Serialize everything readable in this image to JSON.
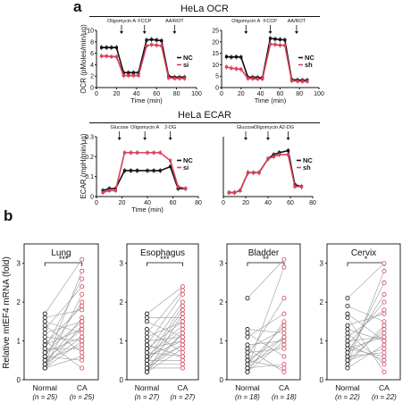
{
  "panel_a_label": "a",
  "panel_b_label": "b",
  "ocr_header": "HeLa OCR",
  "ecar_header": "HeLa ECAR",
  "colors": {
    "nc": "#111111",
    "si": "#d6405a",
    "axis": "#111111"
  },
  "chart_data": [
    {
      "id": "ocr_si",
      "type": "line",
      "ylabel": "OCR (pMoles/min/µg)",
      "xlabel": "Time (min)",
      "xlim": [
        0,
        100
      ],
      "ylim": [
        0,
        10
      ],
      "x_ticks": [
        0,
        20,
        40,
        60,
        80,
        100
      ],
      "y_ticks": [
        0,
        2,
        4,
        6,
        8,
        10
      ],
      "annotations": [
        {
          "label": "Oligomycin A",
          "x": 25
        },
        {
          "label": "FCCP",
          "x": 48
        },
        {
          "label": "AA/ROT",
          "x": 78
        }
      ],
      "legend": [
        "NC",
        "si"
      ],
      "x": [
        5,
        10,
        15,
        20,
        27,
        32,
        37,
        42,
        50,
        55,
        60,
        65,
        72,
        78,
        83,
        88
      ],
      "series": [
        {
          "name": "NC",
          "values": [
            7.0,
            7.0,
            7.0,
            7.0,
            2.6,
            2.6,
            2.6,
            2.6,
            8.3,
            8.4,
            8.3,
            8.2,
            2.0,
            1.8,
            1.8,
            1.8
          ]
        },
        {
          "name": "si",
          "values": [
            5.5,
            5.5,
            5.4,
            5.4,
            2.1,
            2.1,
            2.1,
            2.1,
            7.3,
            7.5,
            7.4,
            7.3,
            1.7,
            1.6,
            1.6,
            1.6
          ]
        }
      ]
    },
    {
      "id": "ocr_sh",
      "type": "line",
      "xlabel": "Time (min)",
      "xlim": [
        0,
        100
      ],
      "ylim": [
        0,
        25
      ],
      "x_ticks": [
        0,
        20,
        40,
        60,
        80,
        100
      ],
      "y_ticks": [
        0,
        5,
        10,
        15,
        20,
        25
      ],
      "annotations": [
        {
          "label": "Oligomycin A",
          "x": 25
        },
        {
          "label": "FCCP",
          "x": 50
        },
        {
          "label": "AA/ROT",
          "x": 77
        }
      ],
      "legend": [
        "NC",
        "sh"
      ],
      "x": [
        5,
        10,
        15,
        20,
        27,
        32,
        37,
        42,
        50,
        55,
        60,
        65,
        72,
        78,
        83,
        88
      ],
      "series": [
        {
          "name": "NC",
          "values": [
            13.5,
            13.3,
            13.4,
            13.3,
            4.5,
            4.5,
            4.4,
            4.3,
            21.5,
            21.2,
            21.0,
            20.8,
            3.5,
            3.3,
            3.2,
            3.2
          ]
        },
        {
          "name": "sh",
          "values": [
            9.0,
            8.5,
            8.2,
            8.0,
            4.0,
            3.9,
            3.8,
            3.8,
            19.0,
            18.8,
            18.5,
            18.5,
            3.0,
            2.8,
            2.7,
            2.7
          ]
        }
      ]
    },
    {
      "id": "ecar_si",
      "type": "line",
      "ylabel": "ECAR (mpH/min/µg)",
      "xlabel": "Time (min)",
      "xlim": [
        0,
        80
      ],
      "ylim": [
        0,
        0.3
      ],
      "x_ticks": [
        0,
        20,
        40,
        60,
        80
      ],
      "y_ticks": [
        0.0,
        0.1,
        0.2,
        0.3
      ],
      "annotations": [
        {
          "label": "Glucose",
          "x": 18
        },
        {
          "label": "Oligomycin A",
          "x": 38
        },
        {
          "label": "2-DG",
          "x": 58
        }
      ],
      "legend": [
        "NC",
        "si"
      ],
      "x": [
        5,
        10,
        15,
        22,
        27,
        32,
        40,
        45,
        50,
        58,
        64,
        70
      ],
      "series": [
        {
          "name": "NC",
          "values": [
            0.03,
            0.04,
            0.04,
            0.13,
            0.13,
            0.13,
            0.13,
            0.13,
            0.13,
            0.15,
            0.04,
            0.04
          ]
        },
        {
          "name": "si",
          "values": [
            0.02,
            0.03,
            0.03,
            0.22,
            0.22,
            0.22,
            0.22,
            0.22,
            0.22,
            0.18,
            0.05,
            0.04
          ]
        }
      ]
    },
    {
      "id": "ecar_sh",
      "type": "line",
      "xlim": [
        0,
        80
      ],
      "ylim": [
        0,
        0.3
      ],
      "x_ticks": [
        0,
        20,
        40,
        60,
        80
      ],
      "annotations": [
        {
          "label": "Glucose",
          "x": 20
        },
        {
          "label": "Oligomycin A",
          "x": 40
        },
        {
          "label": "2-DG",
          "x": 58
        }
      ],
      "legend": [
        "NC",
        "sh"
      ],
      "x": [
        5,
        10,
        15,
        22,
        27,
        32,
        40,
        45,
        50,
        58,
        64,
        70
      ],
      "series": [
        {
          "name": "NC",
          "values": [
            0.02,
            0.02,
            0.03,
            0.12,
            0.12,
            0.12,
            0.19,
            0.21,
            0.22,
            0.23,
            0.06,
            0.05
          ]
        },
        {
          "name": "sh",
          "values": [
            0.02,
            0.02,
            0.03,
            0.12,
            0.12,
            0.12,
            0.19,
            0.2,
            0.21,
            0.21,
            0.05,
            0.05
          ]
        }
      ]
    },
    {
      "id": "paired",
      "type": "scatter",
      "ylabel": "Relative mtEF4 mRNA (fold)",
      "ylim": [
        0,
        3.5
      ],
      "y_ticks_per_panel": [
        [
          0,
          1,
          2,
          3
        ],
        [
          0,
          1,
          2,
          3
        ],
        [
          0,
          1,
          2,
          3
        ],
        [
          0,
          1,
          2,
          3
        ]
      ],
      "panels": [
        {
          "title": "Lung",
          "sig": "***",
          "x_labels": [
            "Normal",
            "CA"
          ],
          "n_labels": [
            "(n = 25)",
            "(n = 25)"
          ],
          "normal": [
            1.7,
            1.6,
            1.5,
            1.4,
            1.3,
            1.2,
            1.1,
            1.0,
            0.9,
            0.9,
            0.8,
            0.8,
            0.7,
            0.7,
            0.6,
            0.6,
            0.5,
            0.5,
            0.4,
            0.4,
            0.4,
            0.3,
            0.3,
            0.3,
            0.3
          ],
          "ca": [
            3.1,
            2.8,
            2.6,
            2.4,
            2.2,
            2.0,
            1.9,
            1.8,
            1.6,
            1.5,
            1.5,
            1.4,
            1.3,
            1.3,
            1.2,
            1.1,
            1.1,
            1.0,
            1.0,
            0.9,
            0.8,
            0.7,
            0.6,
            0.5,
            0.3
          ]
        },
        {
          "title": "Esophagus",
          "sig": "***",
          "x_labels": [
            "Normal",
            "CA"
          ],
          "n_labels": [
            "(n = 27)",
            "(n = 27)"
          ],
          "normal": [
            1.7,
            1.6,
            1.5,
            1.3,
            1.2,
            1.1,
            1.0,
            0.9,
            0.9,
            0.8,
            0.8,
            0.7,
            0.7,
            0.6,
            0.6,
            0.5,
            0.5,
            0.5,
            0.4,
            0.4,
            0.4,
            0.3,
            0.3,
            0.3,
            0.2,
            0.2,
            0.2
          ],
          "ca": [
            2.4,
            2.3,
            2.2,
            2.0,
            1.9,
            1.8,
            1.7,
            1.6,
            1.5,
            1.5,
            1.4,
            1.3,
            1.2,
            1.2,
            1.1,
            1.1,
            1.0,
            1.0,
            0.9,
            0.9,
            0.8,
            0.7,
            0.6,
            0.6,
            0.5,
            0.4,
            0.3
          ]
        },
        {
          "title": "Bladder",
          "sig": "**",
          "x_labels": [
            "Normal",
            "CA"
          ],
          "n_labels": [
            "(n = 18)",
            "(n = 18)"
          ],
          "normal": [
            2.1,
            1.3,
            1.2,
            1.1,
            0.9,
            0.8,
            0.8,
            0.7,
            0.6,
            0.5,
            0.5,
            0.4,
            0.4,
            0.3,
            0.3,
            0.3,
            0.2,
            0.2
          ],
          "ca": [
            3.1,
            2.9,
            2.1,
            1.7,
            1.5,
            1.4,
            1.3,
            1.2,
            1.1,
            1.1,
            1.0,
            1.0,
            0.9,
            0.8,
            0.6,
            0.4,
            0.3,
            0.2
          ]
        },
        {
          "title": "Cervix",
          "sig": "*",
          "x_labels": [
            "Normal",
            "CA"
          ],
          "n_labels": [
            "(n = 22)",
            "(n = 22)"
          ],
          "normal": [
            2.1,
            1.9,
            1.7,
            1.6,
            1.4,
            1.3,
            1.2,
            1.1,
            1.0,
            0.9,
            0.9,
            0.8,
            0.8,
            0.7,
            0.7,
            0.6,
            0.6,
            0.5,
            0.5,
            0.4,
            0.4,
            0.3
          ],
          "ca": [
            3.0,
            2.8,
            2.5,
            2.2,
            2.0,
            1.8,
            1.7,
            1.5,
            1.4,
            1.3,
            1.2,
            1.1,
            1.1,
            1.0,
            1.0,
            0.9,
            0.8,
            0.7,
            0.6,
            0.5,
            0.4,
            0.2
          ]
        }
      ]
    }
  ]
}
